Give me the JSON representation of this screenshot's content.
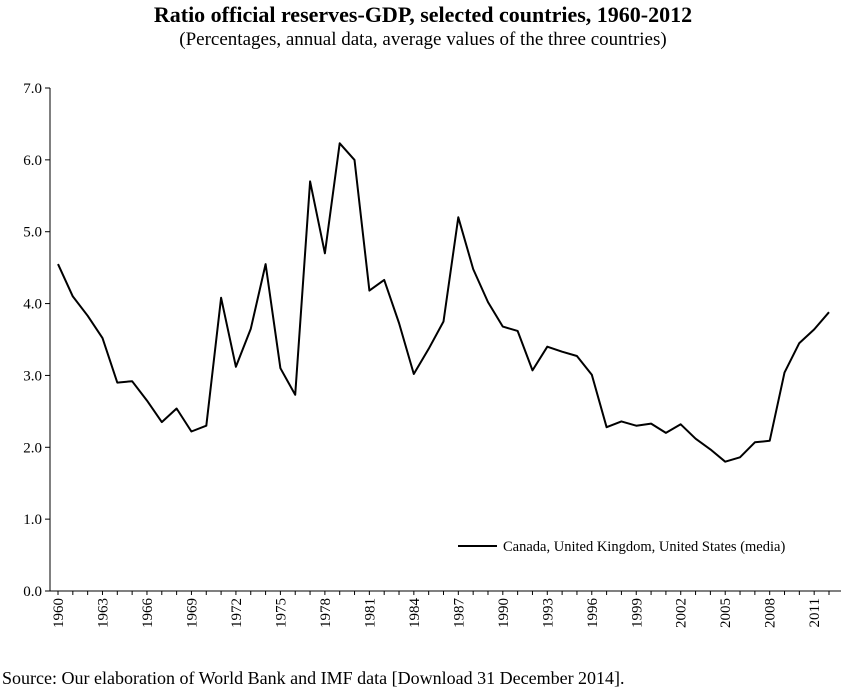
{
  "title": "Ratio official reserves-GDP, selected countries, 1960-2012",
  "subtitle": "(Percentages, annual data, average values of the three countries)",
  "source": "Source: Our elaboration of World Bank and IMF data [Download 31 December 2014].",
  "chart_data": {
    "type": "line",
    "title": "Ratio official reserves-GDP, selected countries, 1960-2012",
    "subtitle": "(Percentages, annual data, average values of the three countries)",
    "xlabel": "",
    "ylabel": "",
    "xlim": [
      1960,
      2012
    ],
    "ylim": [
      0,
      7
    ],
    "y_ticks": [
      "0.0",
      "1.0",
      "2.0",
      "3.0",
      "4.0",
      "5.0",
      "6.0",
      "7.0"
    ],
    "x_ticks": [
      "1960",
      "1963",
      "1966",
      "1969",
      "1972",
      "1975",
      "1978",
      "1981",
      "1984",
      "1987",
      "1990",
      "1993",
      "1996",
      "1999",
      "2002",
      "2005",
      "2008",
      "2011"
    ],
    "legend_position": "lower-right",
    "grid": false,
    "series": [
      {
        "name": "Canada, United Kingdom, United States (media)",
        "color": "#000000",
        "x": [
          1960,
          1961,
          1962,
          1963,
          1964,
          1965,
          1966,
          1967,
          1968,
          1969,
          1970,
          1971,
          1972,
          1973,
          1974,
          1975,
          1976,
          1977,
          1978,
          1979,
          1980,
          1981,
          1982,
          1983,
          1984,
          1985,
          1986,
          1987,
          1988,
          1989,
          1990,
          1991,
          1992,
          1993,
          1994,
          1995,
          1996,
          1997,
          1998,
          1999,
          2000,
          2001,
          2002,
          2003,
          2004,
          2005,
          2006,
          2007,
          2008,
          2009,
          2010,
          2011,
          2012
        ],
        "values": [
          4.55,
          4.1,
          3.83,
          3.52,
          2.9,
          2.92,
          2.65,
          2.35,
          2.54,
          2.22,
          2.3,
          4.08,
          3.12,
          3.65,
          4.55,
          3.1,
          2.73,
          5.7,
          4.7,
          6.23,
          6.0,
          4.18,
          4.33,
          3.73,
          3.02,
          3.37,
          3.75,
          5.2,
          4.48,
          4.02,
          3.68,
          3.62,
          3.07,
          3.4,
          3.33,
          3.27,
          3.01,
          2.28,
          2.36,
          2.3,
          2.33,
          2.2,
          2.32,
          2.12,
          1.97,
          1.8,
          1.86,
          2.07,
          2.09,
          3.04,
          3.45,
          3.64,
          3.88
        ]
      }
    ]
  }
}
